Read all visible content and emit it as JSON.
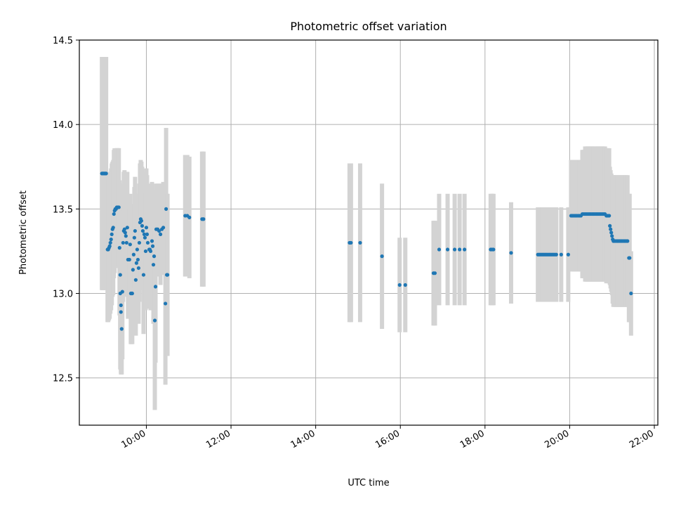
{
  "chart_data": {
    "type": "scatter",
    "title": "Photometric offset variation",
    "xlabel": "UTC time",
    "ylabel": "Photometric offset",
    "xlim": [
      "08:25",
      "22:05"
    ],
    "ylim": [
      12.22,
      14.5
    ],
    "xticks": [
      "10:00",
      "12:00",
      "14:00",
      "16:00",
      "18:00",
      "20:00",
      "22:00"
    ],
    "yticks": [
      12.5,
      13.0,
      13.5,
      14.0,
      14.5
    ],
    "ytick_labels": [
      "12.5",
      "13.0",
      "13.5",
      "14.0",
      "14.5"
    ],
    "grid": true,
    "colors": {
      "points": "#1f77b4",
      "error_bars": "#d3d3d3",
      "grid": "#b0b0b0"
    },
    "points": [
      {
        "x": "08:57",
        "y": 13.71,
        "err": 0.69
      },
      {
        "x": "08:58",
        "y": 13.71,
        "err": 0.69
      },
      {
        "x": "08:59",
        "y": 13.71,
        "err": 0.69
      },
      {
        "x": "09:00",
        "y": 13.71,
        "err": 0.69
      },
      {
        "x": "09:01",
        "y": 13.71,
        "err": 0.69
      },
      {
        "x": "09:02",
        "y": 13.71,
        "err": 0.69
      },
      {
        "x": "09:03",
        "y": 13.71,
        "err": 0.69
      },
      {
        "x": "09:05",
        "y": 13.26,
        "err": 0.43
      },
      {
        "x": "09:06",
        "y": 13.26,
        "err": 0.43
      },
      {
        "x": "09:07",
        "y": 13.27,
        "err": 0.43
      },
      {
        "x": "09:08",
        "y": 13.28,
        "err": 0.43
      },
      {
        "x": "09:09",
        "y": 13.3,
        "err": 0.42
      },
      {
        "x": "09:10",
        "y": 13.32,
        "err": 0.42
      },
      {
        "x": "09:11",
        "y": 13.35,
        "err": 0.42
      },
      {
        "x": "09:12",
        "y": 13.38,
        "err": 0.4
      },
      {
        "x": "09:13",
        "y": 13.39,
        "err": 0.4
      },
      {
        "x": "09:14",
        "y": 13.47,
        "err": 0.38
      },
      {
        "x": "09:15",
        "y": 13.49,
        "err": 0.37
      },
      {
        "x": "09:16",
        "y": 13.5,
        "err": 0.35
      },
      {
        "x": "09:17",
        "y": 13.5,
        "err": 0.35
      },
      {
        "x": "09:18",
        "y": 13.51,
        "err": 0.35
      },
      {
        "x": "09:19",
        "y": 13.51,
        "err": 0.35
      },
      {
        "x": "09:20",
        "y": 13.51,
        "err": 0.35
      },
      {
        "x": "09:21",
        "y": 13.51,
        "err": 0.35
      },
      {
        "x": "09:22",
        "y": 13.27,
        "err": 0.4
      },
      {
        "x": "09:23",
        "y": 13.11,
        "err": 0.45
      },
      {
        "x": "09:23",
        "y": 13.0,
        "err": 0.45
      },
      {
        "x": "09:24",
        "y": 12.93,
        "err": 0.4
      },
      {
        "x": "09:24",
        "y": 12.89,
        "err": 0.37
      },
      {
        "x": "09:25",
        "y": 12.79,
        "err": 0.27
      },
      {
        "x": "09:26",
        "y": 13.01,
        "err": 0.4
      },
      {
        "x": "09:27",
        "y": 13.3,
        "err": 0.35
      },
      {
        "x": "09:28",
        "y": 13.37,
        "err": 0.35
      },
      {
        "x": "09:29",
        "y": 13.38,
        "err": 0.35
      },
      {
        "x": "09:30",
        "y": 13.36,
        "err": 0.35
      },
      {
        "x": "09:31",
        "y": 13.34,
        "err": 0.35
      },
      {
        "x": "09:32",
        "y": 13.3,
        "err": 0.32
      },
      {
        "x": "09:33",
        "y": 13.39,
        "err": 0.33
      },
      {
        "x": "09:34",
        "y": 13.2,
        "err": 0.35
      },
      {
        "x": "09:36",
        "y": 13.2,
        "err": 0.3
      },
      {
        "x": "09:37",
        "y": 13.29,
        "err": 0.3
      },
      {
        "x": "09:38",
        "y": 13.0,
        "err": 0.3
      },
      {
        "x": "09:39",
        "y": 13.0,
        "err": 0.3
      },
      {
        "x": "09:40",
        "y": 13.0,
        "err": 0.3
      },
      {
        "x": "09:41",
        "y": 13.14,
        "err": 0.3
      },
      {
        "x": "09:42",
        "y": 13.23,
        "err": 0.3
      },
      {
        "x": "09:43",
        "y": 13.33,
        "err": 0.3
      },
      {
        "x": "09:44",
        "y": 13.37,
        "err": 0.32
      },
      {
        "x": "09:45",
        "y": 13.08,
        "err": 0.33
      },
      {
        "x": "09:46",
        "y": 13.18,
        "err": 0.33
      },
      {
        "x": "09:47",
        "y": 13.26,
        "err": 0.33
      },
      {
        "x": "09:48",
        "y": 13.2,
        "err": 0.33
      },
      {
        "x": "09:49",
        "y": 13.15,
        "err": 0.33
      },
      {
        "x": "09:50",
        "y": 13.3,
        "err": 0.35
      },
      {
        "x": "09:51",
        "y": 13.42,
        "err": 0.35
      },
      {
        "x": "09:52",
        "y": 13.44,
        "err": 0.35
      },
      {
        "x": "09:53",
        "y": 13.43,
        "err": 0.35
      },
      {
        "x": "09:54",
        "y": 13.4,
        "err": 0.35
      },
      {
        "x": "09:55",
        "y": 13.37,
        "err": 0.35
      },
      {
        "x": "09:56",
        "y": 13.11,
        "err": 0.35
      },
      {
        "x": "09:57",
        "y": 13.35,
        "err": 0.35
      },
      {
        "x": "09:58",
        "y": 13.33,
        "err": 0.35
      },
      {
        "x": "09:59",
        "y": 13.25,
        "err": 0.35
      },
      {
        "x": "10:00",
        "y": 13.39,
        "err": 0.35
      },
      {
        "x": "10:01",
        "y": 13.35,
        "err": 0.35
      },
      {
        "x": "10:02",
        "y": 13.3,
        "err": 0.35
      },
      {
        "x": "10:04",
        "y": 13.26,
        "err": 0.35
      },
      {
        "x": "10:05",
        "y": 13.26,
        "err": 0.35
      },
      {
        "x": "10:06",
        "y": 13.25,
        "err": 0.35
      },
      {
        "x": "10:08",
        "y": 13.31,
        "err": 0.35
      },
      {
        "x": "10:09",
        "y": 13.28,
        "err": 0.33
      },
      {
        "x": "10:10",
        "y": 13.17,
        "err": 0.35
      },
      {
        "x": "10:11",
        "y": 13.22,
        "err": 0.3
      },
      {
        "x": "10:12",
        "y": 12.84,
        "err": 0.53
      },
      {
        "x": "10:13",
        "y": 13.04,
        "err": 0.45
      },
      {
        "x": "10:14",
        "y": 13.38,
        "err": 0.27
      },
      {
        "x": "10:16",
        "y": 13.38,
        "err": 0.27
      },
      {
        "x": "10:18",
        "y": 13.37,
        "err": 0.27
      },
      {
        "x": "10:20",
        "y": 13.35,
        "err": 0.3
      },
      {
        "x": "10:22",
        "y": 13.38,
        "err": 0.27
      },
      {
        "x": "10:24",
        "y": 13.39,
        "err": 0.27
      },
      {
        "x": "10:27",
        "y": 12.94,
        "err": 0.48
      },
      {
        "x": "10:28",
        "y": 13.5,
        "err": 0.48
      },
      {
        "x": "10:29",
        "y": 13.11,
        "err": 0.48
      },
      {
        "x": "10:30",
        "y": 13.11,
        "err": 0.48
      },
      {
        "x": "10:55",
        "y": 13.46,
        "err": 0.36
      },
      {
        "x": "10:58",
        "y": 13.46,
        "err": 0.36
      },
      {
        "x": "11:01",
        "y": 13.45,
        "err": 0.36
      },
      {
        "x": "11:19",
        "y": 13.44,
        "err": 0.4
      },
      {
        "x": "11:21",
        "y": 13.44,
        "err": 0.4
      },
      {
        "x": "14:48",
        "y": 13.3,
        "err": 0.47
      },
      {
        "x": "14:50",
        "y": 13.3,
        "err": 0.47
      },
      {
        "x": "15:03",
        "y": 13.3,
        "err": 0.47
      },
      {
        "x": "15:34",
        "y": 13.22,
        "err": 0.43
      },
      {
        "x": "15:59",
        "y": 13.05,
        "err": 0.28
      },
      {
        "x": "16:07",
        "y": 13.05,
        "err": 0.28
      },
      {
        "x": "16:47",
        "y": 13.12,
        "err": 0.31
      },
      {
        "x": "16:49",
        "y": 13.12,
        "err": 0.31
      },
      {
        "x": "16:55",
        "y": 13.26,
        "err": 0.33
      },
      {
        "x": "17:07",
        "y": 13.26,
        "err": 0.33
      },
      {
        "x": "17:17",
        "y": 13.26,
        "err": 0.33
      },
      {
        "x": "17:24",
        "y": 13.26,
        "err": 0.33
      },
      {
        "x": "17:31",
        "y": 13.26,
        "err": 0.33
      },
      {
        "x": "18:08",
        "y": 13.26,
        "err": 0.33
      },
      {
        "x": "18:10",
        "y": 13.26,
        "err": 0.33
      },
      {
        "x": "18:12",
        "y": 13.26,
        "err": 0.33
      },
      {
        "x": "18:37",
        "y": 13.24,
        "err": 0.3
      },
      {
        "x": "19:15",
        "y": 13.23,
        "err": 0.28
      },
      {
        "x": "19:17",
        "y": 13.23,
        "err": 0.28
      },
      {
        "x": "19:19",
        "y": 13.23,
        "err": 0.28
      },
      {
        "x": "19:21",
        "y": 13.23,
        "err": 0.28
      },
      {
        "x": "19:23",
        "y": 13.23,
        "err": 0.28
      },
      {
        "x": "19:25",
        "y": 13.23,
        "err": 0.28
      },
      {
        "x": "19:27",
        "y": 13.23,
        "err": 0.28
      },
      {
        "x": "19:29",
        "y": 13.23,
        "err": 0.28
      },
      {
        "x": "19:31",
        "y": 13.23,
        "err": 0.28
      },
      {
        "x": "19:33",
        "y": 13.23,
        "err": 0.28
      },
      {
        "x": "19:35",
        "y": 13.23,
        "err": 0.28
      },
      {
        "x": "19:37",
        "y": 13.23,
        "err": 0.28
      },
      {
        "x": "19:39",
        "y": 13.23,
        "err": 0.28
      },
      {
        "x": "19:41",
        "y": 13.23,
        "err": 0.28
      },
      {
        "x": "19:48",
        "y": 13.23,
        "err": 0.28
      },
      {
        "x": "19:58",
        "y": 13.23,
        "err": 0.28
      },
      {
        "x": "20:02",
        "y": 13.46,
        "err": 0.33
      },
      {
        "x": "20:04",
        "y": 13.46,
        "err": 0.33
      },
      {
        "x": "20:06",
        "y": 13.46,
        "err": 0.33
      },
      {
        "x": "20:08",
        "y": 13.46,
        "err": 0.33
      },
      {
        "x": "20:10",
        "y": 13.46,
        "err": 0.33
      },
      {
        "x": "20:12",
        "y": 13.46,
        "err": 0.33
      },
      {
        "x": "20:14",
        "y": 13.46,
        "err": 0.33
      },
      {
        "x": "20:16",
        "y": 13.46,
        "err": 0.33
      },
      {
        "x": "20:18",
        "y": 13.47,
        "err": 0.38
      },
      {
        "x": "20:20",
        "y": 13.47,
        "err": 0.38
      },
      {
        "x": "20:22",
        "y": 13.47,
        "err": 0.4
      },
      {
        "x": "20:24",
        "y": 13.47,
        "err": 0.4
      },
      {
        "x": "20:26",
        "y": 13.47,
        "err": 0.4
      },
      {
        "x": "20:28",
        "y": 13.47,
        "err": 0.4
      },
      {
        "x": "20:30",
        "y": 13.47,
        "err": 0.4
      },
      {
        "x": "20:32",
        "y": 13.47,
        "err": 0.4
      },
      {
        "x": "20:34",
        "y": 13.47,
        "err": 0.4
      },
      {
        "x": "20:36",
        "y": 13.47,
        "err": 0.4
      },
      {
        "x": "20:38",
        "y": 13.47,
        "err": 0.4
      },
      {
        "x": "20:40",
        "y": 13.47,
        "err": 0.4
      },
      {
        "x": "20:42",
        "y": 13.47,
        "err": 0.4
      },
      {
        "x": "20:44",
        "y": 13.47,
        "err": 0.4
      },
      {
        "x": "20:46",
        "y": 13.47,
        "err": 0.4
      },
      {
        "x": "20:48",
        "y": 13.47,
        "err": 0.4
      },
      {
        "x": "20:50",
        "y": 13.47,
        "err": 0.4
      },
      {
        "x": "20:52",
        "y": 13.46,
        "err": 0.4
      },
      {
        "x": "20:54",
        "y": 13.46,
        "err": 0.4
      },
      {
        "x": "20:56",
        "y": 13.46,
        "err": 0.4
      },
      {
        "x": "20:57",
        "y": 13.4,
        "err": 0.35
      },
      {
        "x": "20:58",
        "y": 13.38,
        "err": 0.35
      },
      {
        "x": "20:59",
        "y": 13.36,
        "err": 0.35
      },
      {
        "x": "21:00",
        "y": 13.34,
        "err": 0.35
      },
      {
        "x": "21:01",
        "y": 13.32,
        "err": 0.38
      },
      {
        "x": "21:02",
        "y": 13.31,
        "err": 0.39
      },
      {
        "x": "21:04",
        "y": 13.31,
        "err": 0.39
      },
      {
        "x": "21:06",
        "y": 13.31,
        "err": 0.39
      },
      {
        "x": "21:08",
        "y": 13.31,
        "err": 0.39
      },
      {
        "x": "21:10",
        "y": 13.31,
        "err": 0.39
      },
      {
        "x": "21:12",
        "y": 13.31,
        "err": 0.39
      },
      {
        "x": "21:14",
        "y": 13.31,
        "err": 0.39
      },
      {
        "x": "21:16",
        "y": 13.31,
        "err": 0.39
      },
      {
        "x": "21:18",
        "y": 13.31,
        "err": 0.39
      },
      {
        "x": "21:20",
        "y": 13.31,
        "err": 0.39
      },
      {
        "x": "21:22",
        "y": 13.31,
        "err": 0.39
      },
      {
        "x": "21:24",
        "y": 13.21,
        "err": 0.38
      },
      {
        "x": "21:25",
        "y": 13.21,
        "err": 0.38
      },
      {
        "x": "21:27",
        "y": 13.0,
        "err": 0.25
      }
    ]
  }
}
